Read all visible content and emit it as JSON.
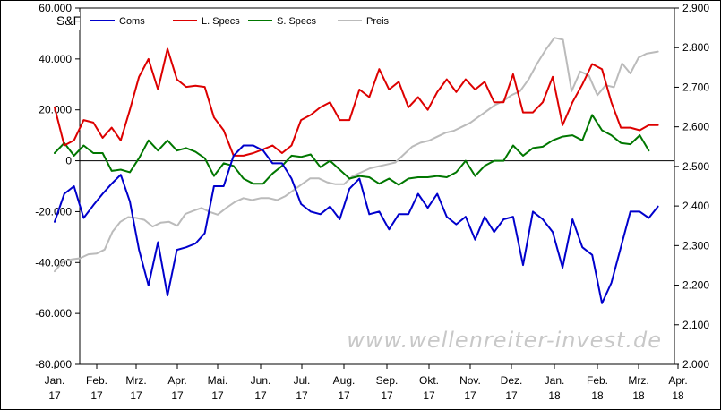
{
  "chart_data": {
    "type": "line",
    "title": "S&F",
    "watermark": "www.wellenreiter-invest.de",
    "left_axis": {
      "range": [
        -80000,
        60000
      ],
      "ticks": [
        -80000,
        -60000,
        -40000,
        -20000,
        0,
        20000,
        40000,
        60000
      ],
      "tick_labels": [
        "-80.000",
        "-60.000",
        "-40.000",
        "-20.000",
        "0",
        "20.000",
        "40.000",
        "60.000"
      ]
    },
    "right_axis": {
      "range": [
        2000,
        2900
      ],
      "ticks": [
        2000,
        2100,
        2200,
        2300,
        2400,
        2500,
        2600,
        2700,
        2800,
        2900
      ],
      "tick_labels": [
        "2.000",
        "2.100",
        "2.200",
        "2.300",
        "2.400",
        "2.500",
        "2.600",
        "2.700",
        "2.800",
        "2.900"
      ]
    },
    "x_axis": {
      "range": [
        0,
        15
      ],
      "ticks": [
        0,
        1,
        2,
        3,
        4,
        5,
        6,
        7,
        8,
        9,
        10,
        11,
        12,
        13,
        14,
        15
      ],
      "tick_labels": [
        [
          "Jan.",
          "17"
        ],
        [
          "Feb.",
          "17"
        ],
        [
          "Mrz.",
          "17"
        ],
        [
          "Apr.",
          "17"
        ],
        [
          "Mai.",
          "17"
        ],
        [
          "Jun.",
          "17"
        ],
        [
          "Jul.",
          "17"
        ],
        [
          "Aug.",
          "17"
        ],
        [
          "Sep.",
          "17"
        ],
        [
          "Okt.",
          "17"
        ],
        [
          "Nov.",
          "17"
        ],
        [
          "Dez.",
          "17"
        ],
        [
          "Jan.",
          "18"
        ],
        [
          "Feb.",
          "18"
        ],
        [
          "Mrz.",
          "18"
        ],
        [
          "Apr.",
          "18"
        ]
      ]
    },
    "grid": false,
    "zero_line": true,
    "legend_position": "top",
    "series": [
      {
        "name": "Coms",
        "axis": "left",
        "color": "#0000cc",
        "points": [
          [
            0,
            -24000
          ],
          [
            0.23,
            -13000
          ],
          [
            0.46,
            -10000
          ],
          [
            0.69,
            -22500
          ],
          [
            0.92,
            -17500
          ],
          [
            1.15,
            -13000
          ],
          [
            1.38,
            -9000
          ],
          [
            1.61,
            -5500
          ],
          [
            1.84,
            -16000
          ],
          [
            2.07,
            -35000
          ],
          [
            2.3,
            -49000
          ],
          [
            2.53,
            -32000
          ],
          [
            2.76,
            -53000
          ],
          [
            2.99,
            -35000
          ],
          [
            3.22,
            -34000
          ],
          [
            3.45,
            -32500
          ],
          [
            3.68,
            -28500
          ],
          [
            3.91,
            -10000
          ],
          [
            4.14,
            -10000
          ],
          [
            4.37,
            2000
          ],
          [
            4.6,
            6000
          ],
          [
            4.83,
            6000
          ],
          [
            5.06,
            4000
          ],
          [
            5.29,
            -1000
          ],
          [
            5.52,
            -1000
          ],
          [
            5.75,
            -7000
          ],
          [
            5.98,
            -17000
          ],
          [
            6.21,
            -20000
          ],
          [
            6.44,
            -21000
          ],
          [
            6.67,
            -18000
          ],
          [
            6.9,
            -23000
          ],
          [
            7.13,
            -11000
          ],
          [
            7.36,
            -7000
          ],
          [
            7.59,
            -21000
          ],
          [
            7.82,
            -20000
          ],
          [
            8.05,
            -27000
          ],
          [
            8.28,
            -21000
          ],
          [
            8.51,
            -21000
          ],
          [
            8.74,
            -13000
          ],
          [
            8.97,
            -18500
          ],
          [
            9.2,
            -13000
          ],
          [
            9.43,
            -22000
          ],
          [
            9.66,
            -25000
          ],
          [
            9.89,
            -22000
          ],
          [
            10.12,
            -31000
          ],
          [
            10.35,
            -22000
          ],
          [
            10.58,
            -28000
          ],
          [
            10.81,
            -23000
          ],
          [
            11.04,
            -22000
          ],
          [
            11.27,
            -41000
          ],
          [
            11.5,
            -20000
          ],
          [
            11.73,
            -23000
          ],
          [
            11.96,
            -28000
          ],
          [
            12.19,
            -42000
          ],
          [
            12.42,
            -23000
          ],
          [
            12.65,
            -34000
          ],
          [
            12.88,
            -37000
          ],
          [
            13.11,
            -56000
          ],
          [
            13.34,
            -48000
          ],
          [
            13.57,
            -34000
          ],
          [
            13.8,
            -20000
          ],
          [
            14.03,
            -20000
          ],
          [
            14.26,
            -22500
          ],
          [
            14.49,
            -18000
          ]
        ]
      },
      {
        "name": "L. Specs",
        "axis": "left",
        "color": "#dd0000",
        "points": [
          [
            0,
            21000
          ],
          [
            0.23,
            6000
          ],
          [
            0.46,
            8000
          ],
          [
            0.69,
            16000
          ],
          [
            0.92,
            15000
          ],
          [
            1.15,
            9000
          ],
          [
            1.38,
            13000
          ],
          [
            1.61,
            8000
          ],
          [
            1.84,
            20000
          ],
          [
            2.07,
            33000
          ],
          [
            2.3,
            40000
          ],
          [
            2.53,
            28000
          ],
          [
            2.76,
            44000
          ],
          [
            2.99,
            32000
          ],
          [
            3.22,
            29000
          ],
          [
            3.45,
            29500
          ],
          [
            3.68,
            29000
          ],
          [
            3.91,
            17000
          ],
          [
            4.14,
            12000
          ],
          [
            4.37,
            2000
          ],
          [
            4.6,
            2000
          ],
          [
            4.83,
            3000
          ],
          [
            5.06,
            4500
          ],
          [
            5.29,
            6000
          ],
          [
            5.52,
            3000
          ],
          [
            5.75,
            6000
          ],
          [
            5.98,
            16000
          ],
          [
            6.21,
            18000
          ],
          [
            6.44,
            21000
          ],
          [
            6.67,
            23000
          ],
          [
            6.9,
            16000
          ],
          [
            7.13,
            16000
          ],
          [
            7.36,
            28000
          ],
          [
            7.59,
            25000
          ],
          [
            7.82,
            36000
          ],
          [
            8.05,
            28000
          ],
          [
            8.28,
            31000
          ],
          [
            8.51,
            21000
          ],
          [
            8.74,
            25000
          ],
          [
            8.97,
            20000
          ],
          [
            9.2,
            27000
          ],
          [
            9.43,
            32000
          ],
          [
            9.66,
            27000
          ],
          [
            9.89,
            32000
          ],
          [
            10.12,
            28000
          ],
          [
            10.35,
            31000
          ],
          [
            10.58,
            23000
          ],
          [
            10.81,
            23000
          ],
          [
            11.04,
            34000
          ],
          [
            11.27,
            19000
          ],
          [
            11.5,
            19000
          ],
          [
            11.73,
            23000
          ],
          [
            11.96,
            33000
          ],
          [
            12.19,
            14000
          ],
          [
            12.42,
            23000
          ],
          [
            12.65,
            30000
          ],
          [
            12.88,
            38000
          ],
          [
            13.11,
            36000
          ],
          [
            13.34,
            23000
          ],
          [
            13.57,
            13000
          ],
          [
            13.8,
            13000
          ],
          [
            14.03,
            12000
          ],
          [
            14.26,
            14000
          ],
          [
            14.49,
            14000
          ]
        ]
      },
      {
        "name": "S. Specs",
        "axis": "left",
        "color": "#007700",
        "points": [
          [
            0,
            3000
          ],
          [
            0.23,
            7000
          ],
          [
            0.46,
            2000
          ],
          [
            0.69,
            6000
          ],
          [
            0.92,
            3000
          ],
          [
            1.15,
            3000
          ],
          [
            1.38,
            -4000
          ],
          [
            1.61,
            -3500
          ],
          [
            1.84,
            -4500
          ],
          [
            2.07,
            1000
          ],
          [
            2.3,
            8000
          ],
          [
            2.53,
            4000
          ],
          [
            2.76,
            8000
          ],
          [
            2.99,
            4000
          ],
          [
            3.22,
            5000
          ],
          [
            3.45,
            3500
          ],
          [
            3.68,
            1000
          ],
          [
            3.91,
            -6000
          ],
          [
            4.14,
            -1000
          ],
          [
            4.37,
            -2000
          ],
          [
            4.6,
            -7000
          ],
          [
            4.83,
            -9000
          ],
          [
            5.06,
            -9000
          ],
          [
            5.29,
            -5000
          ],
          [
            5.52,
            -2000
          ],
          [
            5.75,
            2000
          ],
          [
            5.98,
            1500
          ],
          [
            6.21,
            2500
          ],
          [
            6.44,
            -2500
          ],
          [
            6.67,
            0
          ],
          [
            6.9,
            -3500
          ],
          [
            7.13,
            -7000
          ],
          [
            7.36,
            -6000
          ],
          [
            7.59,
            -6500
          ],
          [
            7.82,
            -9000
          ],
          [
            8.05,
            -7000
          ],
          [
            8.28,
            -9500
          ],
          [
            8.51,
            -7000
          ],
          [
            8.74,
            -6500
          ],
          [
            8.97,
            -6500
          ],
          [
            9.2,
            -6000
          ],
          [
            9.43,
            -6500
          ],
          [
            9.66,
            -4500
          ],
          [
            9.89,
            0
          ],
          [
            10.12,
            -6000
          ],
          [
            10.35,
            -2000
          ],
          [
            10.58,
            0
          ],
          [
            10.81,
            0
          ],
          [
            11.04,
            6000
          ],
          [
            11.27,
            2000
          ],
          [
            11.5,
            5000
          ],
          [
            11.73,
            5500
          ],
          [
            11.96,
            8000
          ],
          [
            12.19,
            9500
          ],
          [
            12.42,
            10000
          ],
          [
            12.65,
            8000
          ],
          [
            12.88,
            18000
          ],
          [
            13.11,
            12000
          ],
          [
            13.34,
            10000
          ],
          [
            13.57,
            7000
          ],
          [
            13.8,
            6500
          ],
          [
            14.03,
            10000
          ],
          [
            14.26,
            4000
          ]
        ]
      },
      {
        "name": "Preis",
        "axis": "right",
        "color": "#bbbbbb",
        "points": [
          [
            0,
            2235
          ],
          [
            0.2,
            2260
          ],
          [
            0.4,
            2265
          ],
          [
            0.6,
            2268
          ],
          [
            0.8,
            2278
          ],
          [
            1,
            2280
          ],
          [
            1.2,
            2290
          ],
          [
            1.4,
            2335
          ],
          [
            1.6,
            2360
          ],
          [
            1.8,
            2372
          ],
          [
            2,
            2370
          ],
          [
            2.2,
            2365
          ],
          [
            2.4,
            2348
          ],
          [
            2.6,
            2358
          ],
          [
            2.8,
            2360
          ],
          [
            3,
            2350
          ],
          [
            3.2,
            2380
          ],
          [
            3.4,
            2388
          ],
          [
            3.6,
            2395
          ],
          [
            3.8,
            2385
          ],
          [
            4,
            2378
          ],
          [
            4.2,
            2395
          ],
          [
            4.4,
            2410
          ],
          [
            4.6,
            2420
          ],
          [
            4.8,
            2415
          ],
          [
            5,
            2420
          ],
          [
            5.2,
            2420
          ],
          [
            5.4,
            2415
          ],
          [
            5.6,
            2425
          ],
          [
            5.8,
            2440
          ],
          [
            6,
            2455
          ],
          [
            6.2,
            2470
          ],
          [
            6.4,
            2470
          ],
          [
            6.6,
            2460
          ],
          [
            6.8,
            2455
          ],
          [
            7,
            2455
          ],
          [
            7.2,
            2475
          ],
          [
            7.4,
            2485
          ],
          [
            7.6,
            2495
          ],
          [
            7.8,
            2500
          ],
          [
            8,
            2505
          ],
          [
            8.2,
            2510
          ],
          [
            8.4,
            2530
          ],
          [
            8.6,
            2550
          ],
          [
            8.8,
            2560
          ],
          [
            9,
            2565
          ],
          [
            9.2,
            2575
          ],
          [
            9.4,
            2585
          ],
          [
            9.6,
            2590
          ],
          [
            9.8,
            2600
          ],
          [
            10,
            2610
          ],
          [
            10.2,
            2625
          ],
          [
            10.4,
            2640
          ],
          [
            10.6,
            2655
          ],
          [
            10.8,
            2665
          ],
          [
            11,
            2680
          ],
          [
            11.2,
            2690
          ],
          [
            11.4,
            2720
          ],
          [
            11.6,
            2760
          ],
          [
            11.8,
            2795
          ],
          [
            12,
            2825
          ],
          [
            12.2,
            2820
          ],
          [
            12.4,
            2690
          ],
          [
            12.6,
            2740
          ],
          [
            12.8,
            2730
          ],
          [
            13,
            2680
          ],
          [
            13.2,
            2705
          ],
          [
            13.4,
            2700
          ],
          [
            13.6,
            2760
          ],
          [
            13.8,
            2735
          ],
          [
            14,
            2775
          ],
          [
            14.2,
            2785
          ],
          [
            14.49,
            2790
          ]
        ]
      }
    ]
  }
}
